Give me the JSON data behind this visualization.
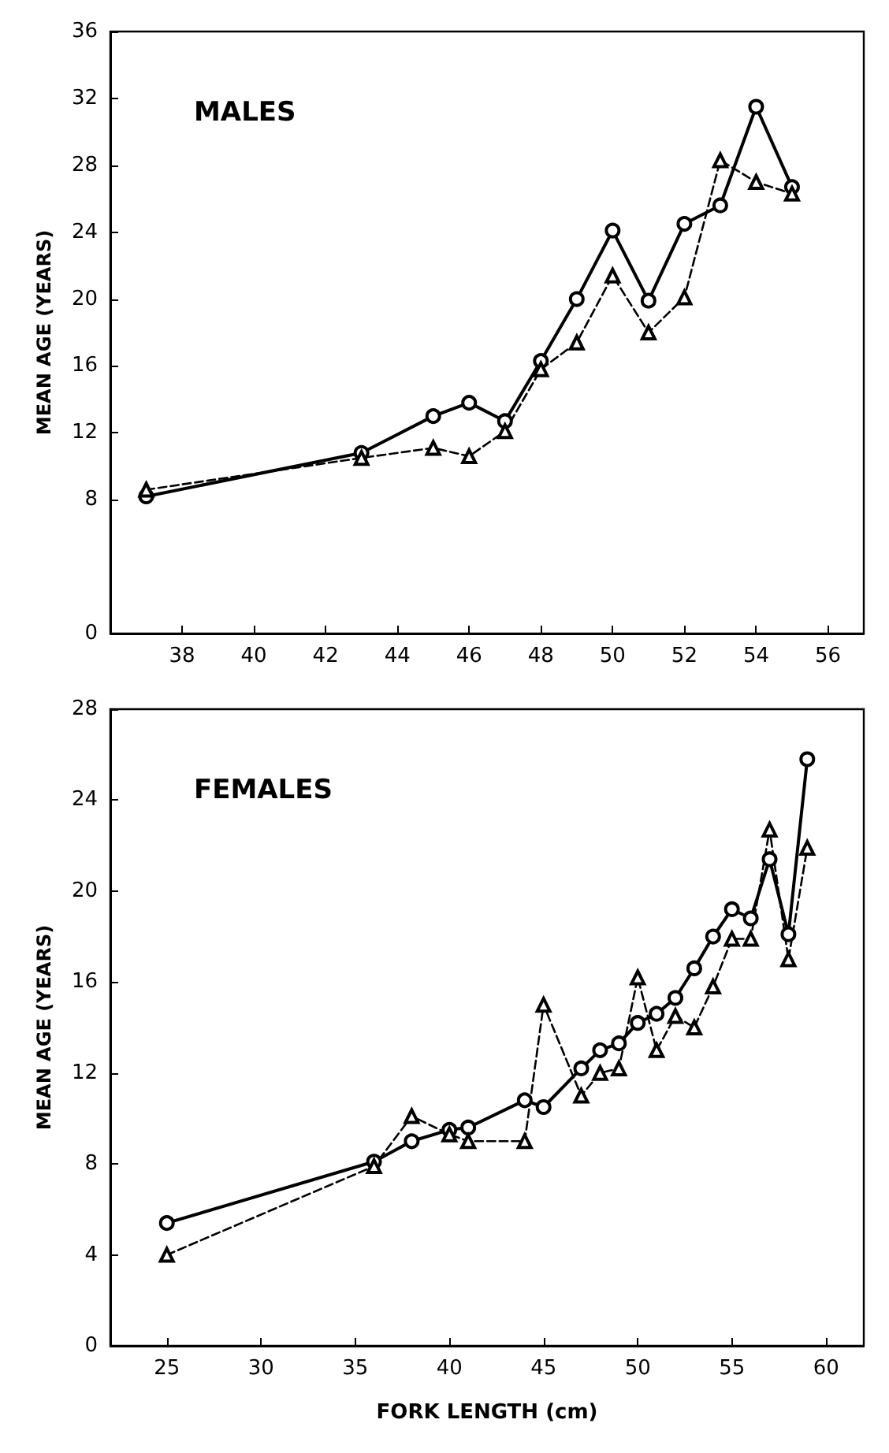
{
  "chart_data": [
    {
      "type": "line",
      "title": "MALES",
      "ylabel": "MEAN AGE (YEARS)",
      "xlim": [
        36,
        57
      ],
      "xticks": [
        38,
        40,
        42,
        44,
        46,
        48,
        50,
        52,
        54,
        56
      ],
      "ylim": [
        0,
        36
      ],
      "yticks": [
        0,
        8,
        12,
        16,
        20,
        24,
        28,
        32,
        36
      ],
      "grid": false,
      "series": [
        {
          "color": "#000000",
          "marker": "circle",
          "line_style": "solid",
          "x": [
            37,
            43,
            45,
            46,
            47,
            48,
            49,
            50,
            51,
            52,
            53,
            54,
            55
          ],
          "values": [
            8.2,
            10.8,
            13,
            13.8,
            12.7,
            16.3,
            20,
            24.1,
            19.9,
            24.5,
            25.6,
            31.5,
            26.7
          ]
        },
        {
          "color": "#000000",
          "marker": "triangle",
          "line_style": "dashed",
          "x": [
            37,
            43,
            45,
            46,
            47,
            48,
            49,
            50,
            51,
            52,
            53,
            54,
            55
          ],
          "values": [
            8.6,
            10.5,
            11.1,
            10.6,
            12.1,
            15.8,
            17.4,
            21.4,
            18,
            20.1,
            28.3,
            27,
            26.3
          ]
        }
      ]
    },
    {
      "type": "line",
      "title": "FEMALES",
      "xlabel": "FORK LENGTH (cm)",
      "ylabel": "MEAN AGE (YEARS)",
      "xlim": [
        22,
        62
      ],
      "xticks": [
        25,
        30,
        35,
        40,
        45,
        50,
        55,
        60
      ],
      "ylim": [
        0,
        28
      ],
      "yticks": [
        0,
        4,
        8,
        12,
        16,
        20,
        24,
        28
      ],
      "grid": false,
      "series": [
        {
          "color": "#000000",
          "marker": "circle",
          "line_style": "solid",
          "x": [
            25,
            36,
            38,
            40,
            41,
            44,
            45,
            47,
            48,
            49,
            50,
            51,
            52,
            53,
            54,
            55,
            56,
            57,
            58,
            59
          ],
          "values": [
            5.4,
            8.1,
            9,
            9.5,
            9.6,
            10.8,
            10.5,
            12.2,
            13,
            13.3,
            14.2,
            14.6,
            15.3,
            16.6,
            18,
            19.2,
            18.8,
            21.4,
            18.1,
            25.8
          ]
        },
        {
          "color": "#000000",
          "marker": "triangle",
          "line_style": "dashed",
          "x": [
            25,
            36,
            38,
            40,
            41,
            44,
            45,
            47,
            48,
            49,
            50,
            51,
            52,
            53,
            54,
            55,
            56,
            57,
            58,
            59
          ],
          "values": [
            4,
            7.9,
            10.1,
            9.3,
            9,
            9,
            15,
            11,
            12,
            12.2,
            16.2,
            13,
            14.5,
            14,
            15.8,
            17.9,
            17.9,
            22.7,
            17,
            21.9
          ]
        }
      ]
    }
  ]
}
